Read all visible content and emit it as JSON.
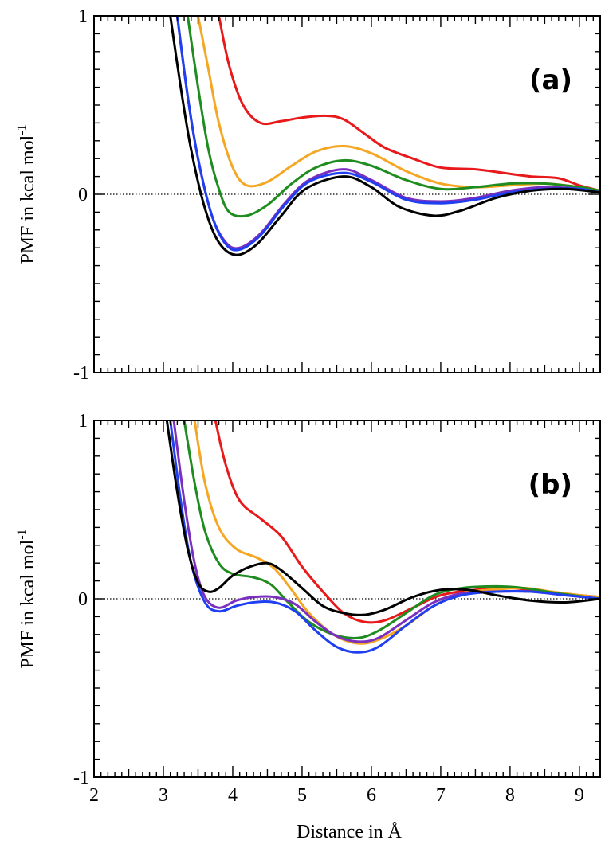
{
  "figure": {
    "xlabel": "Distance in Å"
  },
  "chart_data": [
    {
      "type": "line",
      "panel_label": "(a)",
      "ylabel": "PMF in kcal mol",
      "ylabel_superscript": "-1",
      "xlim": [
        2.0,
        9.3
      ],
      "ylim": [
        -1,
        1
      ],
      "x_ticks": [
        2,
        3,
        4,
        5,
        6,
        7,
        8,
        9
      ],
      "x_tick_labels": [],
      "y_ticks": [
        -1,
        0,
        1
      ],
      "y_tick_labels": [
        "-1",
        "0",
        "1"
      ],
      "zero_line": true,
      "legend": "none",
      "grid": false,
      "series": [
        {
          "color": "#e8191b",
          "x": [
            3.8,
            3.95,
            4.15,
            4.4,
            4.7,
            5.0,
            5.35,
            5.6,
            5.9,
            6.2,
            6.6,
            7.0,
            7.5,
            7.9,
            8.3,
            8.7,
            9.0,
            9.3
          ],
          "y": [
            1.0,
            0.72,
            0.5,
            0.4,
            0.41,
            0.43,
            0.44,
            0.42,
            0.34,
            0.26,
            0.2,
            0.15,
            0.14,
            0.12,
            0.1,
            0.09,
            0.05,
            0.02
          ]
        },
        {
          "color": "#f5a623",
          "x": [
            3.5,
            3.65,
            3.8,
            4.0,
            4.2,
            4.5,
            4.85,
            5.2,
            5.6,
            6.0,
            6.5,
            7.0,
            7.5,
            8.0,
            8.5,
            9.0,
            9.3
          ],
          "y": [
            1.0,
            0.7,
            0.4,
            0.15,
            0.05,
            0.07,
            0.16,
            0.24,
            0.27,
            0.23,
            0.13,
            0.06,
            0.04,
            0.05,
            0.06,
            0.04,
            0.02
          ]
        },
        {
          "color": "#1e8c1e",
          "x": [
            3.35,
            3.5,
            3.65,
            3.8,
            3.95,
            4.2,
            4.5,
            4.85,
            5.2,
            5.6,
            6.0,
            6.5,
            7.0,
            7.5,
            8.0,
            8.5,
            9.0,
            9.3
          ],
          "y": [
            1.0,
            0.6,
            0.25,
            0.03,
            -0.1,
            -0.12,
            -0.06,
            0.06,
            0.15,
            0.19,
            0.16,
            0.08,
            0.03,
            0.04,
            0.06,
            0.06,
            0.04,
            0.02
          ]
        },
        {
          "color": "#7b2fbe",
          "x": [
            3.2,
            3.35,
            3.5,
            3.7,
            3.9,
            4.1,
            4.4,
            4.75,
            5.1,
            5.6,
            6.0,
            6.5,
            7.0,
            7.5,
            8.0,
            8.5,
            9.0,
            9.3
          ],
          "y": [
            1.0,
            0.55,
            0.2,
            -0.12,
            -0.27,
            -0.3,
            -0.22,
            -0.05,
            0.08,
            0.14,
            0.08,
            -0.02,
            -0.04,
            -0.02,
            0.02,
            0.04,
            0.03,
            0.01
          ]
        },
        {
          "color": "#1f3ff0",
          "x": [
            3.2,
            3.35,
            3.5,
            3.7,
            3.9,
            4.1,
            4.4,
            4.75,
            5.1,
            5.6,
            6.0,
            6.5,
            7.0,
            7.5,
            8.0,
            8.5,
            9.0,
            9.3
          ],
          "y": [
            1.0,
            0.55,
            0.2,
            -0.12,
            -0.28,
            -0.31,
            -0.23,
            -0.06,
            0.07,
            0.12,
            0.07,
            -0.03,
            -0.05,
            -0.03,
            0.01,
            0.03,
            0.03,
            0.01
          ]
        },
        {
          "color": "#000000",
          "x": [
            3.1,
            3.25,
            3.4,
            3.6,
            3.8,
            4.05,
            4.35,
            4.7,
            5.05,
            5.6,
            6.0,
            6.4,
            6.9,
            7.3,
            7.8,
            8.3,
            8.8,
            9.3
          ],
          "y": [
            1.0,
            0.6,
            0.25,
            -0.08,
            -0.27,
            -0.34,
            -0.28,
            -0.12,
            0.03,
            0.1,
            0.04,
            -0.07,
            -0.12,
            -0.09,
            -0.02,
            0.02,
            0.03,
            0.01
          ]
        }
      ]
    },
    {
      "type": "line",
      "panel_label": "(b)",
      "ylabel": "PMF in kcal mol",
      "ylabel_superscript": "-1",
      "xlim": [
        2.0,
        9.3
      ],
      "ylim": [
        -1,
        1
      ],
      "x_ticks": [
        2,
        3,
        4,
        5,
        6,
        7,
        8,
        9
      ],
      "x_tick_labels": [
        "2",
        "3",
        "4",
        "5",
        "6",
        "7",
        "8",
        "9"
      ],
      "y_ticks": [
        -1,
        0,
        1
      ],
      "y_tick_labels": [
        "-1",
        "0",
        "1"
      ],
      "zero_line": true,
      "legend": "none",
      "grid": false,
      "series": [
        {
          "color": "#e8191b",
          "x": [
            3.75,
            3.9,
            4.1,
            4.4,
            4.7,
            5.0,
            5.3,
            5.6,
            5.9,
            6.2,
            6.6,
            7.0,
            7.5,
            8.0,
            8.5,
            9.0,
            9.3
          ],
          "y": [
            1.0,
            0.75,
            0.55,
            0.45,
            0.35,
            0.18,
            0.04,
            -0.08,
            -0.13,
            -0.12,
            -0.05,
            0.02,
            0.05,
            0.06,
            0.04,
            0.02,
            0.01
          ]
        },
        {
          "color": "#f5a623",
          "x": [
            3.45,
            3.6,
            3.8,
            4.05,
            4.35,
            4.6,
            4.85,
            5.1,
            5.45,
            5.8,
            6.1,
            6.5,
            6.9,
            7.3,
            7.7,
            8.2,
            8.6,
            9.0,
            9.3
          ],
          "y": [
            1.0,
            0.65,
            0.4,
            0.28,
            0.23,
            0.17,
            0.05,
            -0.08,
            -0.2,
            -0.25,
            -0.23,
            -0.15,
            -0.04,
            0.03,
            0.05,
            0.06,
            0.04,
            0.02,
            0.01
          ]
        },
        {
          "color": "#1e8c1e",
          "x": [
            3.3,
            3.45,
            3.6,
            3.8,
            4.0,
            4.3,
            4.55,
            4.8,
            5.1,
            5.45,
            5.8,
            6.1,
            6.5,
            6.9,
            7.3,
            7.8,
            8.2,
            8.7,
            9.3
          ],
          "y": [
            1.0,
            0.65,
            0.38,
            0.2,
            0.14,
            0.12,
            0.08,
            -0.02,
            -0.13,
            -0.2,
            -0.22,
            -0.18,
            -0.08,
            0.02,
            0.06,
            0.07,
            0.06,
            0.03,
            0.0
          ]
        },
        {
          "color": "#7b2fbe",
          "x": [
            3.15,
            3.3,
            3.45,
            3.6,
            3.8,
            4.05,
            4.3,
            4.6,
            4.9,
            5.2,
            5.5,
            5.8,
            6.1,
            6.5,
            6.9,
            7.3,
            7.8,
            8.3,
            8.8,
            9.3
          ],
          "y": [
            1.0,
            0.55,
            0.2,
            0.01,
            -0.05,
            -0.01,
            0.01,
            0.01,
            -0.03,
            -0.13,
            -0.21,
            -0.24,
            -0.22,
            -0.12,
            -0.02,
            0.03,
            0.04,
            0.04,
            0.02,
            0.0
          ]
        },
        {
          "color": "#1f3ff0",
          "x": [
            3.1,
            3.25,
            3.4,
            3.6,
            3.8,
            4.05,
            4.3,
            4.6,
            4.9,
            5.2,
            5.5,
            5.8,
            6.1,
            6.5,
            6.9,
            7.3,
            7.8,
            8.3,
            8.8,
            9.3
          ],
          "y": [
            1.0,
            0.55,
            0.2,
            -0.02,
            -0.07,
            -0.04,
            -0.02,
            -0.02,
            -0.07,
            -0.18,
            -0.27,
            -0.3,
            -0.27,
            -0.15,
            -0.04,
            0.02,
            0.04,
            0.04,
            0.02,
            0.0
          ]
        },
        {
          "color": "#000000",
          "x": [
            3.05,
            3.2,
            3.35,
            3.5,
            3.65,
            3.8,
            4.0,
            4.25,
            4.5,
            4.7,
            5.0,
            5.3,
            5.6,
            5.9,
            6.2,
            6.6,
            7.0,
            7.4,
            7.8,
            8.3,
            8.8,
            9.3
          ],
          "y": [
            1.0,
            0.6,
            0.28,
            0.09,
            0.04,
            0.06,
            0.13,
            0.18,
            0.2,
            0.16,
            0.06,
            -0.04,
            -0.08,
            -0.09,
            -0.06,
            0.01,
            0.05,
            0.05,
            0.02,
            -0.01,
            -0.02,
            0.0
          ]
        }
      ]
    }
  ]
}
